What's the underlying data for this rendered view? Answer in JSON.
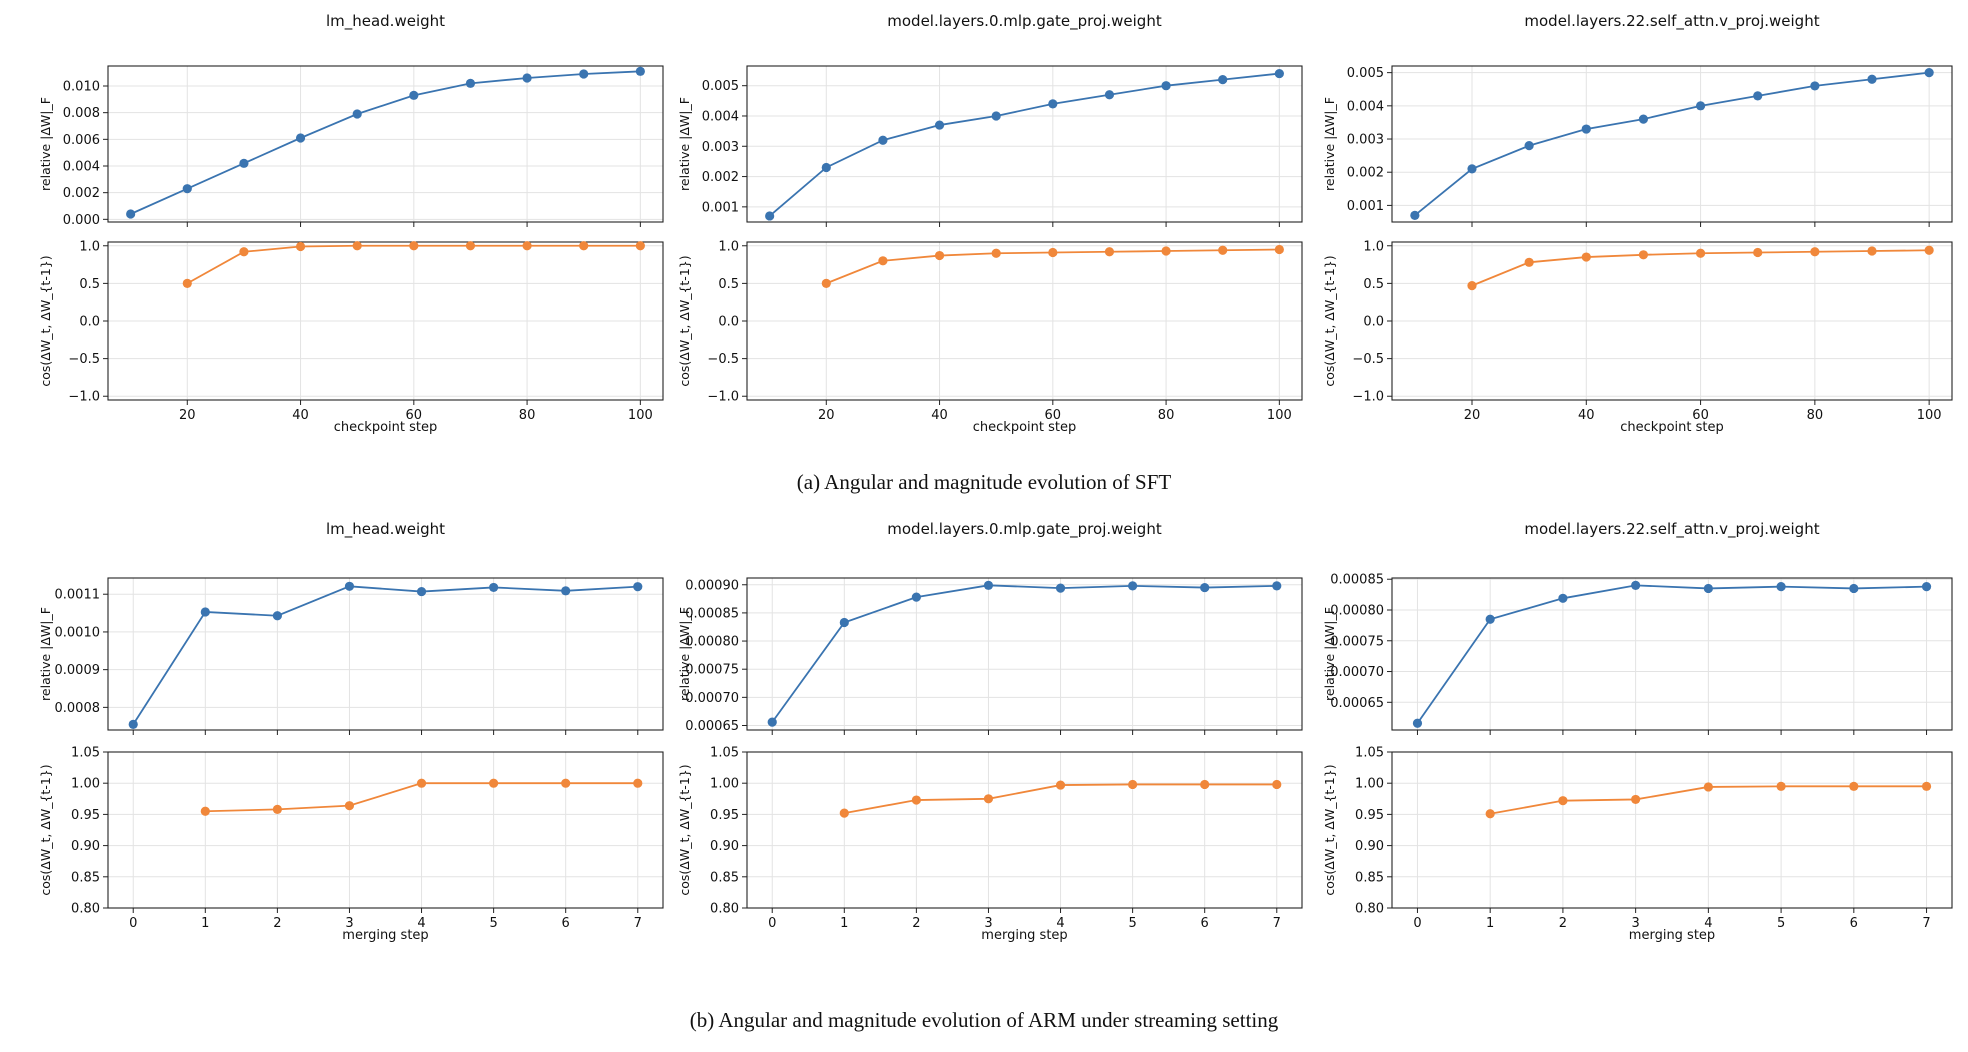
{
  "captions": {
    "a": "(a) Angular and magnitude evolution of SFT",
    "b": "(b) Angular and magnitude evolution of ARM under streaming setting"
  },
  "colors": {
    "magnitude": "#3a74b0",
    "cosine": "#f0873a",
    "grid": "#e3e3e3",
    "axis": "#222222"
  },
  "chart_data": [
    {
      "type": "line",
      "group": "a",
      "title": "lm_head.weight",
      "xlabel": "checkpoint step",
      "xlim": [
        6,
        104
      ],
      "xticks": [
        20,
        40,
        60,
        80,
        100
      ],
      "x": [
        10,
        20,
        30,
        40,
        50,
        60,
        70,
        80,
        90,
        100
      ],
      "top": {
        "ylabel": "relative |ΔW|_F",
        "ylim": [
          -0.0002,
          0.0115
        ],
        "yticks": [
          0.0,
          0.002,
          0.004,
          0.006,
          0.008,
          0.01
        ],
        "ytick_labels": [
          "0.000",
          "0.002",
          "0.004",
          "0.006",
          "0.008",
          "0.010"
        ],
        "values": [
          0.0004,
          0.0023,
          0.0042,
          0.0061,
          0.0079,
          0.0093,
          0.0102,
          0.0106,
          0.0109,
          0.0111
        ]
      },
      "bottom": {
        "ylabel": "cos(ΔW_t, ΔW_{t-1})",
        "ylim": [
          -1.05,
          1.05
        ],
        "yticks": [
          -1.0,
          -0.5,
          0.0,
          0.5,
          1.0
        ],
        "ytick_labels": [
          "−1.0",
          "−0.5",
          "0.0",
          "0.5",
          "1.0"
        ],
        "x": [
          20,
          30,
          40,
          50,
          60,
          70,
          80,
          90,
          100
        ],
        "values": [
          0.5,
          0.92,
          0.99,
          1.0,
          1.0,
          1.0,
          1.0,
          1.0,
          1.0
        ]
      }
    },
    {
      "type": "line",
      "group": "a",
      "title": "model.layers.0.mlp.gate_proj.weight",
      "xlabel": "checkpoint step",
      "xlim": [
        6,
        104
      ],
      "xticks": [
        20,
        40,
        60,
        80,
        100
      ],
      "x": [
        10,
        20,
        30,
        40,
        50,
        60,
        70,
        80,
        90,
        100
      ],
      "top": {
        "ylabel": "relative |ΔW|_F",
        "ylim": [
          0.0005,
          0.00565
        ],
        "yticks": [
          0.001,
          0.002,
          0.003,
          0.004,
          0.005
        ],
        "ytick_labels": [
          "0.001",
          "0.002",
          "0.003",
          "0.004",
          "0.005"
        ],
        "values": [
          0.0007,
          0.0023,
          0.0032,
          0.0037,
          0.004,
          0.0044,
          0.0047,
          0.005,
          0.0052,
          0.0054
        ]
      },
      "bottom": {
        "ylabel": "cos(ΔW_t, ΔW_{t-1})",
        "ylim": [
          -1.05,
          1.05
        ],
        "yticks": [
          -1.0,
          -0.5,
          0.0,
          0.5,
          1.0
        ],
        "ytick_labels": [
          "−1.0",
          "−0.5",
          "0.0",
          "0.5",
          "1.0"
        ],
        "x": [
          20,
          30,
          40,
          50,
          60,
          70,
          80,
          90,
          100
        ],
        "values": [
          0.5,
          0.8,
          0.87,
          0.9,
          0.91,
          0.92,
          0.93,
          0.94,
          0.95
        ]
      }
    },
    {
      "type": "line",
      "group": "a",
      "title": "model.layers.22.self_attn.v_proj.weight",
      "xlabel": "checkpoint step",
      "xlim": [
        6,
        104
      ],
      "xticks": [
        20,
        40,
        60,
        80,
        100
      ],
      "x": [
        10,
        20,
        30,
        40,
        50,
        60,
        70,
        80,
        90,
        100
      ],
      "top": {
        "ylabel": "relative |ΔW|_F",
        "ylim": [
          0.0005,
          0.0052
        ],
        "yticks": [
          0.001,
          0.002,
          0.003,
          0.004,
          0.005
        ],
        "ytick_labels": [
          "0.001",
          "0.002",
          "0.003",
          "0.004",
          "0.005"
        ],
        "values": [
          0.0007,
          0.0021,
          0.0028,
          0.0033,
          0.0036,
          0.004,
          0.0043,
          0.0046,
          0.0048,
          0.005
        ]
      },
      "bottom": {
        "ylabel": "cos(ΔW_t, ΔW_{t-1})",
        "ylim": [
          -1.05,
          1.05
        ],
        "yticks": [
          -1.0,
          -0.5,
          0.0,
          0.5,
          1.0
        ],
        "ytick_labels": [
          "−1.0",
          "−0.5",
          "0.0",
          "0.5",
          "1.0"
        ],
        "x": [
          20,
          30,
          40,
          50,
          60,
          70,
          80,
          90,
          100
        ],
        "values": [
          0.47,
          0.78,
          0.85,
          0.88,
          0.9,
          0.91,
          0.92,
          0.93,
          0.94
        ]
      }
    },
    {
      "type": "line",
      "group": "b",
      "title": "lm_head.weight",
      "xlabel": "merging step",
      "xlim": [
        -0.35,
        7.35
      ],
      "xticks": [
        0,
        1,
        2,
        3,
        4,
        5,
        6,
        7
      ],
      "x": [
        0,
        1,
        2,
        3,
        4,
        5,
        6,
        7
      ],
      "top": {
        "ylabel": "relative |ΔW|_F",
        "ylim": [
          0.00074,
          0.001143
        ],
        "yticks": [
          0.0008,
          0.0009,
          0.001,
          0.0011
        ],
        "ytick_labels": [
          "0.0008",
          "0.0009",
          "0.0010",
          "0.0011"
        ],
        "values": [
          0.000755,
          0.001053,
          0.001043,
          0.001121,
          0.001107,
          0.001118,
          0.001109,
          0.00112
        ]
      },
      "bottom": {
        "ylabel": "cos(ΔW_t, ΔW_{t-1})",
        "ylim": [
          0.8,
          1.05
        ],
        "yticks": [
          0.8,
          0.85,
          0.9,
          0.95,
          1.0,
          1.05
        ],
        "ytick_labels": [
          "0.80",
          "0.85",
          "0.90",
          "0.95",
          "1.00",
          "1.05"
        ],
        "x": [
          1,
          2,
          3,
          4,
          5,
          6,
          7
        ],
        "values": [
          0.955,
          0.958,
          0.964,
          1.0,
          1.0,
          1.0,
          1.0
        ]
      }
    },
    {
      "type": "line",
      "group": "b",
      "title": "model.layers.0.mlp.gate_proj.weight",
      "xlabel": "merging step",
      "xlim": [
        -0.35,
        7.35
      ],
      "xticks": [
        0,
        1,
        2,
        3,
        4,
        5,
        6,
        7
      ],
      "x": [
        0,
        1,
        2,
        3,
        4,
        5,
        6,
        7
      ],
      "top": {
        "ylabel": "relative |ΔW|_F",
        "ylim": [
          0.000642,
          0.000912
        ],
        "yticks": [
          0.00065,
          0.0007,
          0.00075,
          0.0008,
          0.00085,
          0.0009
        ],
        "ytick_labels": [
          "0.00065",
          "0.00070",
          "0.00075",
          "0.00080",
          "0.00085",
          "0.00090"
        ],
        "values": [
          0.000656,
          0.000833,
          0.000878,
          0.000899,
          0.000894,
          0.000898,
          0.000895,
          0.000898
        ]
      },
      "bottom": {
        "ylabel": "cos(ΔW_t, ΔW_{t-1})",
        "ylim": [
          0.8,
          1.05
        ],
        "yticks": [
          0.8,
          0.85,
          0.9,
          0.95,
          1.0,
          1.05
        ],
        "ytick_labels": [
          "0.80",
          "0.85",
          "0.90",
          "0.95",
          "1.00",
          "1.05"
        ],
        "x": [
          1,
          2,
          3,
          4,
          5,
          6,
          7
        ],
        "values": [
          0.952,
          0.973,
          0.975,
          0.997,
          0.998,
          0.998,
          0.998
        ]
      }
    },
    {
      "type": "line",
      "group": "b",
      "title": "model.layers.22.self_attn.v_proj.weight",
      "xlabel": "merging step",
      "xlim": [
        -0.35,
        7.35
      ],
      "xticks": [
        0,
        1,
        2,
        3,
        4,
        5,
        6,
        7
      ],
      "x": [
        0,
        1,
        2,
        3,
        4,
        5,
        6,
        7
      ],
      "top": {
        "ylabel": "relative |ΔW|_F",
        "ylim": [
          0.000605,
          0.000852
        ],
        "yticks": [
          0.00065,
          0.0007,
          0.00075,
          0.0008,
          0.00085
        ],
        "ytick_labels": [
          "0.00065",
          "0.00070",
          "0.00075",
          "0.00080",
          "0.00085"
        ],
        "values": [
          0.000616,
          0.000785,
          0.000819,
          0.00084,
          0.000835,
          0.000838,
          0.000835,
          0.000838
        ]
      },
      "bottom": {
        "ylabel": "cos(ΔW_t, ΔW_{t-1})",
        "ylim": [
          0.8,
          1.05
        ],
        "yticks": [
          0.8,
          0.85,
          0.9,
          0.95,
          1.0,
          1.05
        ],
        "ytick_labels": [
          "0.80",
          "0.85",
          "0.90",
          "0.95",
          "1.00",
          "1.05"
        ],
        "x": [
          1,
          2,
          3,
          4,
          5,
          6,
          7
        ],
        "values": [
          0.951,
          0.972,
          0.974,
          0.994,
          0.995,
          0.995,
          0.995
        ]
      }
    }
  ]
}
